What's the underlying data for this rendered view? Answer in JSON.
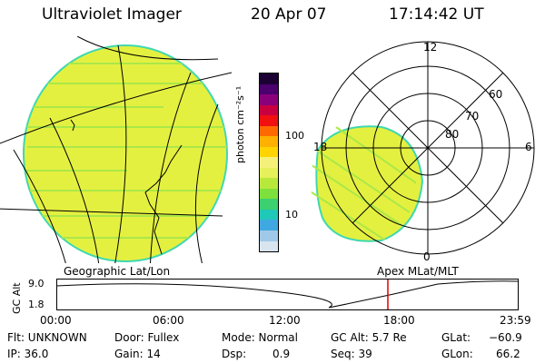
{
  "header": {
    "instrument": "Ultraviolet Imager",
    "date": "20 Apr 07",
    "time": "17:14:42 UT"
  },
  "colorbar": {
    "unit_label": "photon cm⁻²s⁻¹",
    "ticks": [
      "100",
      "10"
    ],
    "colors": [
      "#1a0033",
      "#4b006e",
      "#8a007a",
      "#c80040",
      "#f01010",
      "#ff6a00",
      "#ffb000",
      "#ffd400",
      "#f5f07a",
      "#e6f05a",
      "#b8e83c",
      "#7ee03c",
      "#3cd070",
      "#20c8b8",
      "#40a8e0",
      "#a0c8e8",
      "#d8e4ee"
    ]
  },
  "polar_plot": {
    "mlt_labels": [
      "12",
      "18",
      "6",
      "0"
    ],
    "lat_labels": [
      "60",
      "70",
      "80"
    ]
  },
  "map_labels": {
    "left": "Geographic Lat/Lon",
    "right": "Apex MLat/MLT"
  },
  "timeline": {
    "axis_label": "GC Alt",
    "y_ticks": [
      "9.0",
      "1.8"
    ],
    "x_ticks": [
      "00:00",
      "06:00",
      "12:00",
      "18:00",
      "23:59"
    ],
    "marker_time": "17:14"
  },
  "status": {
    "flt": "Flt: UNKNOWN",
    "ip": "IP: 36.0",
    "door": "Door: Fullex",
    "gain": "Gain: 14",
    "mode": "Mode: Normal",
    "dsp_label": "Dsp:",
    "dsp_value": "0.9",
    "gcalt": "GC Alt: 5.7 Re",
    "seq": "Seq: 39",
    "glat_label": "GLat:",
    "glat_value": "−60.9",
    "glon_label": "GLon:",
    "glon_value": "66.2"
  },
  "image_colors": {
    "fill": "#e4f040",
    "edge": "#40d8b0",
    "stripe": "#aae848"
  }
}
